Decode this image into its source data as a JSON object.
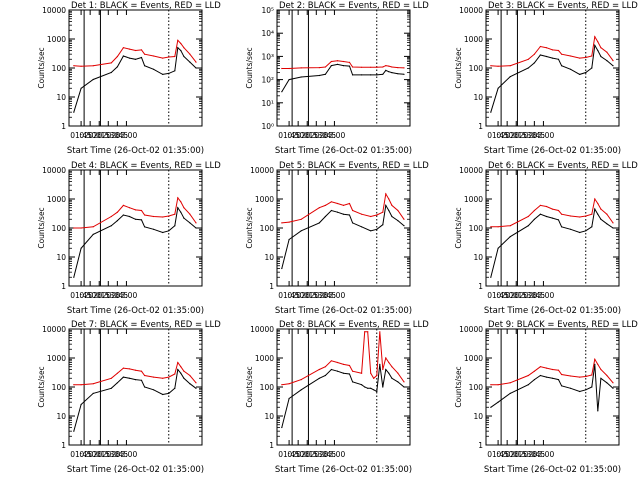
{
  "chart_data": [
    {
      "type": "line",
      "title": "Det 1: BLACK = Events, RED = LLD",
      "xlabel": "Start Time (26-Oct-02 01:35:00)",
      "ylabel": "Counts/sec",
      "y_scale": "log",
      "ylim": [
        1,
        10000
      ],
      "y_ticks": [
        "1",
        "10",
        "100",
        "1000",
        "10000"
      ],
      "x_ticks": [
        "01:45",
        "02:00",
        "02:15",
        "02:30",
        "02:45",
        "03:00"
      ],
      "x_minutes": [
        -2,
        10,
        30,
        60,
        70,
        80,
        90,
        100,
        110,
        115,
        130,
        145,
        155,
        165,
        170,
        175,
        180,
        190,
        200
      ],
      "series": [
        {
          "name": "LLD",
          "color": "#e00000",
          "values": [
            120,
            115,
            120,
            150,
            250,
            500,
            450,
            400,
            420,
            300,
            260,
            220,
            240,
            250,
            900,
            700,
            500,
            300,
            160
          ]
        },
        {
          "name": "Events",
          "color": "#000000",
          "values": [
            3,
            20,
            40,
            70,
            110,
            260,
            220,
            200,
            230,
            120,
            90,
            60,
            65,
            80,
            500,
            400,
            250,
            160,
            100
          ]
        }
      ],
      "vlines": [
        {
          "x": 15,
          "style": "solid"
        },
        {
          "x": 42,
          "style": "solid"
        },
        {
          "x": 155,
          "style": "dotted"
        }
      ]
    },
    {
      "type": "line",
      "title": "Det 2: BLACK = Events, RED = LLD",
      "xlabel": "Start Time (26-Oct-02 01:35:00)",
      "ylabel": "Counts/sec",
      "y_scale": "log",
      "ylim": [
        1,
        100000
      ],
      "y_ticks": [
        "10⁰",
        "10¹",
        "10²",
        "10³",
        "10⁴",
        "10⁵"
      ],
      "x_ticks": [
        "01:45",
        "02:00",
        "02:15",
        "02:30",
        "02:45",
        "03:00"
      ],
      "x_minutes": [
        -2,
        10,
        30,
        60,
        70,
        80,
        90,
        100,
        110,
        115,
        130,
        145,
        155,
        165,
        170,
        175,
        180,
        190,
        200
      ],
      "series": [
        {
          "name": "LLD",
          "color": "#e00000",
          "values": [
            300,
            300,
            320,
            330,
            350,
            600,
            650,
            600,
            550,
            350,
            340,
            340,
            340,
            350,
            400,
            380,
            350,
            330,
            320
          ]
        },
        {
          "name": "Events",
          "color": "#000000",
          "values": [
            30,
            100,
            130,
            150,
            170,
            400,
            450,
            400,
            380,
            160,
            160,
            160,
            160,
            170,
            250,
            220,
            200,
            180,
            170
          ]
        }
      ],
      "vlines": [
        {
          "x": 15,
          "style": "solid"
        },
        {
          "x": 42,
          "style": "solid"
        },
        {
          "x": 155,
          "style": "dotted"
        }
      ]
    },
    {
      "type": "line",
      "title": "Det 3: BLACK = Events, RED = LLD",
      "xlabel": "Start Time (26-Oct-02 01:35:00)",
      "ylabel": "Counts/sec",
      "y_scale": "log",
      "ylim": [
        1,
        10000
      ],
      "y_ticks": [
        "1",
        "10",
        "100",
        "1000",
        "10000"
      ],
      "x_ticks": [
        "01:45",
        "02:00",
        "02:15",
        "02:30",
        "02:45",
        "03:00"
      ],
      "x_minutes": [
        -2,
        10,
        30,
        60,
        70,
        80,
        90,
        100,
        110,
        115,
        130,
        145,
        155,
        165,
        170,
        175,
        180,
        190,
        200
      ],
      "series": [
        {
          "name": "LLD",
          "color": "#e00000",
          "values": [
            120,
            115,
            120,
            200,
            300,
            550,
            500,
            420,
            400,
            300,
            260,
            220,
            230,
            260,
            1200,
            800,
            500,
            350,
            180
          ]
        },
        {
          "name": "Events",
          "color": "#000000",
          "values": [
            3,
            20,
            50,
            100,
            150,
            280,
            250,
            220,
            200,
            120,
            90,
            60,
            70,
            100,
            600,
            400,
            250,
            180,
            120
          ]
        }
      ],
      "vlines": [
        {
          "x": 15,
          "style": "solid"
        },
        {
          "x": 42,
          "style": "solid"
        },
        {
          "x": 155,
          "style": "dotted"
        }
      ]
    },
    {
      "type": "line",
      "title": "Det 4: BLACK = Events, RED = LLD",
      "xlabel": "Start Time (26-Oct-02 01:35:00)",
      "ylabel": "Counts/sec",
      "y_scale": "log",
      "ylim": [
        1,
        10000
      ],
      "y_ticks": [
        "1",
        "10",
        "100",
        "1000",
        "10000"
      ],
      "x_ticks": [
        "01:45",
        "02:00",
        "02:15",
        "02:30",
        "02:45",
        "03:00"
      ],
      "x_minutes": [
        -2,
        10,
        30,
        60,
        70,
        80,
        90,
        100,
        110,
        115,
        130,
        145,
        155,
        165,
        170,
        175,
        180,
        190,
        200
      ],
      "series": [
        {
          "name": "LLD",
          "color": "#e00000",
          "values": [
            100,
            100,
            110,
            250,
            350,
            600,
            500,
            420,
            400,
            280,
            250,
            240,
            260,
            300,
            1100,
            800,
            500,
            300,
            150
          ]
        },
        {
          "name": "Events",
          "color": "#000000",
          "values": [
            2,
            20,
            60,
            120,
            180,
            280,
            250,
            200,
            190,
            110,
            90,
            70,
            80,
            120,
            500,
            350,
            220,
            150,
            100
          ]
        }
      ],
      "vlines": [
        {
          "x": 15,
          "style": "solid"
        },
        {
          "x": 42,
          "style": "solid"
        },
        {
          "x": 155,
          "style": "dotted"
        }
      ]
    },
    {
      "type": "line",
      "title": "Det 5: BLACK = Events, RED = LLD",
      "xlabel": "Start Time (26-Oct-02 01:35:00)",
      "ylabel": "Counts/sec",
      "y_scale": "log",
      "ylim": [
        1,
        10000
      ],
      "y_ticks": [
        "1",
        "10",
        "100",
        "1000",
        "10000"
      ],
      "x_ticks": [
        "01:45",
        "02:00",
        "02:15",
        "02:30",
        "02:45",
        "03:00"
      ],
      "x_minutes": [
        -2,
        10,
        30,
        60,
        70,
        80,
        90,
        100,
        110,
        115,
        130,
        145,
        155,
        165,
        170,
        175,
        180,
        190,
        200
      ],
      "series": [
        {
          "name": "LLD",
          "color": "#e00000",
          "values": [
            150,
            160,
            200,
            500,
            600,
            800,
            700,
            600,
            700,
            400,
            300,
            250,
            280,
            350,
            1500,
            1000,
            600,
            400,
            200
          ]
        },
        {
          "name": "Events",
          "color": "#000000",
          "values": [
            4,
            40,
            80,
            150,
            250,
            400,
            350,
            300,
            280,
            150,
            110,
            80,
            90,
            130,
            600,
            400,
            250,
            180,
            120
          ]
        }
      ],
      "vlines": [
        {
          "x": 15,
          "style": "solid"
        },
        {
          "x": 42,
          "style": "solid"
        },
        {
          "x": 155,
          "style": "dotted"
        }
      ]
    },
    {
      "type": "line",
      "title": "Det 6: BLACK = Events, RED = LLD",
      "xlabel": "Start Time (26-Oct-02 01:35:00)",
      "ylabel": "Counts/sec",
      "y_scale": "log",
      "ylim": [
        1,
        10000
      ],
      "y_ticks": [
        "1",
        "10",
        "100",
        "1000",
        "10000"
      ],
      "x_ticks": [
        "01:45",
        "02:00",
        "02:15",
        "02:30",
        "02:45",
        "03:00"
      ],
      "x_minutes": [
        -2,
        10,
        30,
        60,
        70,
        80,
        90,
        100,
        110,
        115,
        130,
        145,
        155,
        165,
        170,
        175,
        180,
        190,
        200
      ],
      "series": [
        {
          "name": "LLD",
          "color": "#e00000",
          "values": [
            110,
            110,
            120,
            250,
            400,
            600,
            550,
            450,
            400,
            300,
            260,
            240,
            260,
            300,
            1000,
            700,
            450,
            300,
            150
          ]
        },
        {
          "name": "Events",
          "color": "#000000",
          "values": [
            2,
            20,
            50,
            120,
            200,
            300,
            250,
            220,
            190,
            110,
            90,
            70,
            80,
            110,
            450,
            300,
            200,
            140,
            100
          ]
        }
      ],
      "vlines": [
        {
          "x": 15,
          "style": "solid"
        },
        {
          "x": 42,
          "style": "solid"
        },
        {
          "x": 155,
          "style": "dotted"
        }
      ]
    },
    {
      "type": "line",
      "title": "Det 7: BLACK = Events, RED = LLD",
      "xlabel": "Start Time (26-Oct-02 01:35:00)",
      "ylabel": "Counts/sec",
      "y_scale": "log",
      "ylim": [
        1,
        10000
      ],
      "y_ticks": [
        "1",
        "10",
        "100",
        "1000",
        "10000"
      ],
      "x_ticks": [
        "01:45",
        "02:00",
        "02:15",
        "02:30",
        "02:45",
        "03:00"
      ],
      "x_minutes": [
        -2,
        10,
        30,
        60,
        70,
        80,
        90,
        100,
        110,
        115,
        130,
        145,
        155,
        165,
        170,
        175,
        180,
        190,
        200
      ],
      "series": [
        {
          "name": "LLD",
          "color": "#e00000",
          "values": [
            120,
            120,
            130,
            200,
            300,
            450,
            420,
            380,
            350,
            250,
            220,
            200,
            220,
            280,
            700,
            500,
            350,
            250,
            140
          ]
        },
        {
          "name": "Events",
          "color": "#000000",
          "values": [
            3,
            25,
            60,
            90,
            140,
            220,
            200,
            180,
            170,
            100,
            80,
            55,
            60,
            90,
            400,
            300,
            200,
            130,
            90
          ]
        }
      ],
      "vlines": [
        {
          "x": 15,
          "style": "solid"
        },
        {
          "x": 42,
          "style": "solid"
        },
        {
          "x": 155,
          "style": "dotted"
        }
      ]
    },
    {
      "type": "line",
      "title": "Det 8: BLACK = Events, RED = LLD",
      "xlabel": "Start Time (26-Oct-02 01:35:00)",
      "ylabel": "Counts/sec",
      "y_scale": "log",
      "ylim": [
        1,
        10000
      ],
      "y_ticks": [
        "1",
        "10",
        "100",
        "1000",
        "10000"
      ],
      "x_ticks": [
        "01:45",
        "02:00",
        "02:15",
        "02:30",
        "02:45",
        "03:00"
      ],
      "x_minutes": [
        -2,
        10,
        30,
        60,
        70,
        80,
        90,
        100,
        110,
        115,
        130,
        135,
        140,
        145,
        150,
        155,
        160,
        165,
        170,
        175,
        180,
        190,
        200
      ],
      "series": [
        {
          "name": "LLD",
          "color": "#e00000",
          "values": [
            120,
            130,
            180,
            400,
            500,
            800,
            700,
            600,
            550,
            350,
            300,
            8000,
            8000,
            300,
            200,
            250,
            8000,
            400,
            1000,
            700,
            500,
            300,
            150
          ]
        },
        {
          "name": "Events",
          "color": "#000000",
          "values": [
            4,
            40,
            80,
            200,
            250,
            400,
            350,
            300,
            280,
            150,
            120,
            100,
            90,
            90,
            80,
            70,
            600,
            100,
            400,
            300,
            200,
            150,
            100
          ]
        }
      ],
      "vlines": [
        {
          "x": 15,
          "style": "solid"
        },
        {
          "x": 42,
          "style": "solid"
        },
        {
          "x": 155,
          "style": "dotted"
        }
      ]
    },
    {
      "type": "line",
      "title": "Det 9: BLACK = Events, RED = LLD",
      "xlabel": "Start Time (26-Oct-02 01:35:00)",
      "ylabel": "Counts/sec",
      "y_scale": "log",
      "ylim": [
        1,
        10000
      ],
      "y_ticks": [
        "1",
        "10",
        "100",
        "1000",
        "10000"
      ],
      "x_ticks": [
        "01:45",
        "02:00",
        "02:15",
        "02:30",
        "02:45",
        "03:00"
      ],
      "x_minutes": [
        -2,
        10,
        30,
        60,
        70,
        80,
        90,
        100,
        110,
        115,
        130,
        145,
        155,
        165,
        170,
        175,
        180,
        190,
        200
      ],
      "series": [
        {
          "name": "LLD",
          "color": "#e00000",
          "values": [
            120,
            120,
            140,
            250,
            350,
            500,
            450,
            400,
            380,
            270,
            240,
            220,
            230,
            260,
            900,
            600,
            400,
            250,
            140
          ]
        },
        {
          "name": "Events",
          "color": "#000000",
          "values": [
            20,
            30,
            60,
            120,
            180,
            250,
            220,
            200,
            180,
            110,
            90,
            70,
            80,
            100,
            600,
            15,
            200,
            140,
            90
          ]
        }
      ],
      "vlines": [
        {
          "x": 15,
          "style": "solid"
        },
        {
          "x": 42,
          "style": "solid"
        },
        {
          "x": 155,
          "style": "dotted"
        }
      ]
    }
  ]
}
